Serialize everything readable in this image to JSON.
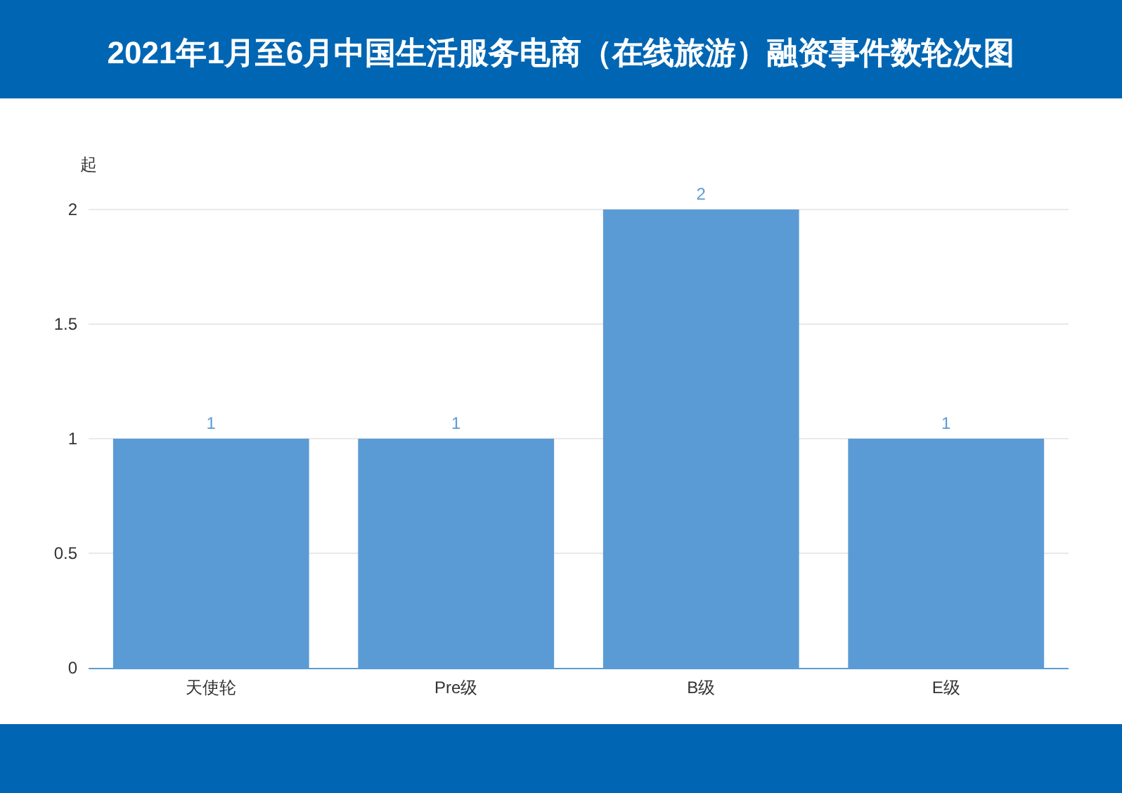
{
  "chart_data": {
    "type": "bar",
    "title": "2021年1月至6月中国生活服务电商（在线旅游）融资事件数轮次图",
    "ylabel": "起",
    "categories": [
      "天使轮",
      "Pre级",
      "B级",
      "E级"
    ],
    "values": [
      1,
      1,
      2,
      1
    ],
    "color": "#5b9bd5",
    "ylim": [
      0,
      2
    ],
    "yticks": [
      0,
      0.5,
      1,
      1.5,
      2
    ],
    "grid": "y",
    "data_labels": true
  }
}
